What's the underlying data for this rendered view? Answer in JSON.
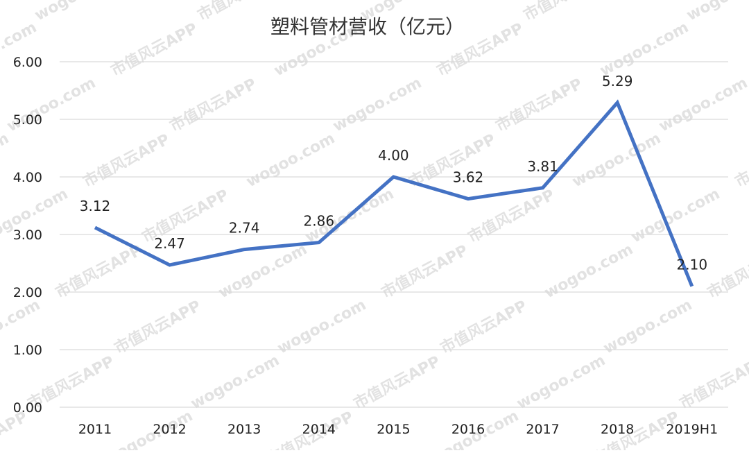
{
  "chart_data": {
    "type": "line",
    "title": "塑料管材营收（亿元）",
    "categories": [
      "2011",
      "2012",
      "2013",
      "2014",
      "2015",
      "2016",
      "2017",
      "2018",
      "2019H1"
    ],
    "series": [
      {
        "values": [
          3.12,
          2.47,
          2.74,
          2.86,
          4.0,
          3.62,
          3.81,
          5.29,
          2.1
        ],
        "labels": [
          "3.12",
          "2.47",
          "2.74",
          "2.86",
          "4.00",
          "3.62",
          "3.81",
          "5.29",
          "2.10"
        ],
        "color": "#4472C4"
      }
    ],
    "y_ticks": [
      "0.00",
      "1.00",
      "2.00",
      "3.00",
      "4.00",
      "5.00",
      "6.00"
    ],
    "ylim": [
      0,
      6
    ],
    "grid": true,
    "legend": "none"
  },
  "watermark": {
    "brand": "市值风云APP",
    "domain": "wogoo.com"
  },
  "colors": {
    "line": "#4472C4",
    "grid": "#d9d9d9",
    "watermark": "#d9d9d9"
  }
}
